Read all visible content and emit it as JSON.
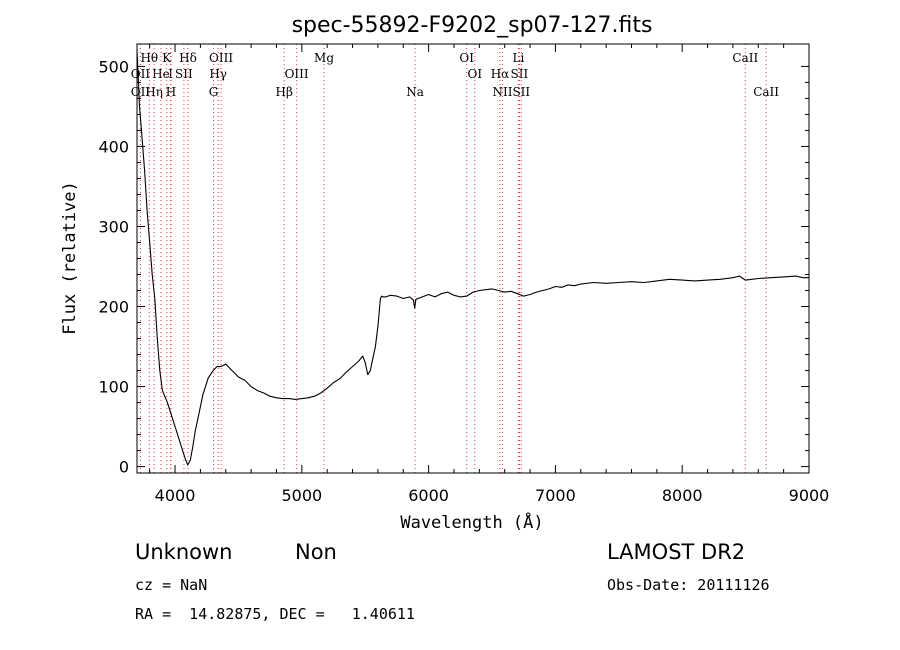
{
  "chart_data": {
    "type": "line",
    "title": "spec-55892-F9202_sp07-127.fits",
    "xlabel": "Wavelength (Å)",
    "ylabel": "Flux (relative)",
    "xlim": [
      3700,
      9000
    ],
    "ylim": [
      -8,
      528
    ],
    "x_ticks": [
      4000,
      5000,
      6000,
      7000,
      8000,
      9000
    ],
    "y_ticks": [
      0,
      100,
      200,
      300,
      400,
      500
    ],
    "grid": false,
    "series": [
      {
        "x": [
          3700,
          3720,
          3740,
          3760,
          3780,
          3800,
          3820,
          3840,
          3860,
          3880,
          3900,
          3940,
          3980,
          4020,
          4060,
          4080,
          4100,
          4120,
          4140,
          4160,
          4180,
          4200,
          4220,
          4240,
          4260,
          4280,
          4300,
          4330,
          4360,
          4400,
          4450,
          4500,
          4550,
          4600,
          4650,
          4700,
          4750,
          4800,
          4850,
          4900,
          4950,
          5000,
          5050,
          5100,
          5150,
          5200,
          5250,
          5300,
          5350,
          5400,
          5450,
          5480,
          5500,
          5520,
          5540,
          5560,
          5580,
          5600,
          5620,
          5630,
          5640,
          5660,
          5700,
          5750,
          5800,
          5850,
          5880,
          5890,
          5900,
          5950,
          6000,
          6050,
          6100,
          6150,
          6200,
          6250,
          6300,
          6350,
          6400,
          6450,
          6500,
          6550,
          6600,
          6650,
          6700,
          6750,
          6800,
          6850,
          6900,
          6950,
          7000,
          7050,
          7100,
          7150,
          7200,
          7300,
          7400,
          7500,
          7600,
          7700,
          7800,
          7900,
          8000,
          8100,
          8200,
          8300,
          8400,
          8450,
          8500,
          8550,
          8600,
          8700,
          8800,
          8900,
          8950,
          9000
        ],
        "y": [
          520,
          450,
          410,
          370,
          320,
          280,
          240,
          210,
          160,
          120,
          95,
          80,
          60,
          40,
          20,
          10,
          2,
          8,
          25,
          45,
          60,
          75,
          90,
          100,
          110,
          115,
          120,
          125,
          125,
          128,
          120,
          112,
          108,
          100,
          95,
          92,
          88,
          86,
          85,
          85,
          84,
          85,
          86,
          88,
          92,
          98,
          105,
          110,
          118,
          125,
          132,
          138,
          130,
          115,
          120,
          135,
          150,
          175,
          210,
          213,
          212,
          212,
          214,
          213,
          210,
          212,
          208,
          198,
          209,
          212,
          215,
          212,
          216,
          218,
          214,
          212,
          213,
          218,
          220,
          221,
          222,
          220,
          218,
          219,
          216,
          213,
          215,
          218,
          220,
          222,
          225,
          224,
          227,
          226,
          228,
          230,
          229,
          230,
          231,
          230,
          232,
          234,
          233,
          232,
          233,
          234,
          236,
          238,
          233,
          234,
          235,
          236,
          237,
          238,
          236,
          236
        ]
      }
    ],
    "line_markers": [
      {
        "label": "Hθ",
        "wl": 3797,
        "row": 0
      },
      {
        "label": "K",
        "wl": 3934,
        "row": 0
      },
      {
        "label": "Hδ",
        "wl": 4102,
        "row": 0
      },
      {
        "label": "OIII",
        "wl": 4363,
        "row": 0
      },
      {
        "label": "Mg",
        "wl": 5175,
        "row": 0
      },
      {
        "label": "OI",
        "wl": 6300,
        "row": 0
      },
      {
        "label": "Li",
        "wl": 6708,
        "row": 0
      },
      {
        "label": "CaII",
        "wl": 8498,
        "row": 0
      },
      {
        "label": "OII",
        "wl": 3727,
        "row": 1
      },
      {
        "label": "He",
        "wl": 3889,
        "row": 1
      },
      {
        "label": "I",
        "wl": 3965,
        "row": 1
      },
      {
        "label": "SII",
        "wl": 4070,
        "row": 1
      },
      {
        "label": "Hγ",
        "wl": 4340,
        "row": 1
      },
      {
        "label": "OIII",
        "wl": 4959,
        "row": 1
      },
      {
        "label": "OI",
        "wl": 6364,
        "row": 1
      },
      {
        "label": "Hα",
        "wl": 6563,
        "row": 1
      },
      {
        "label": "SII",
        "wl": 6716,
        "row": 1
      },
      {
        "label": "OII",
        "wl": 3727,
        "row": 2
      },
      {
        "label": "Hη",
        "wl": 3835,
        "row": 2
      },
      {
        "label": "H",
        "wl": 3968,
        "row": 2
      },
      {
        "label": "G",
        "wl": 4304,
        "row": 2
      },
      {
        "label": "Hβ",
        "wl": 4861,
        "row": 2
      },
      {
        "label": "Na",
        "wl": 5893,
        "row": 2
      },
      {
        "label": "NII",
        "wl": 6583,
        "row": 2
      },
      {
        "label": "SII",
        "wl": 6731,
        "row": 2
      },
      {
        "label": "CaII",
        "wl": 8662,
        "row": 2
      }
    ]
  },
  "info": {
    "class_label": "Unknown",
    "subclass_label": "Non",
    "survey_label": "LAMOST DR2",
    "cz_text": "cz = NaN",
    "obs_date_text": "Obs-Date: 20111126",
    "radec_text": "RA =  14.82875, DEC =   1.40611"
  }
}
